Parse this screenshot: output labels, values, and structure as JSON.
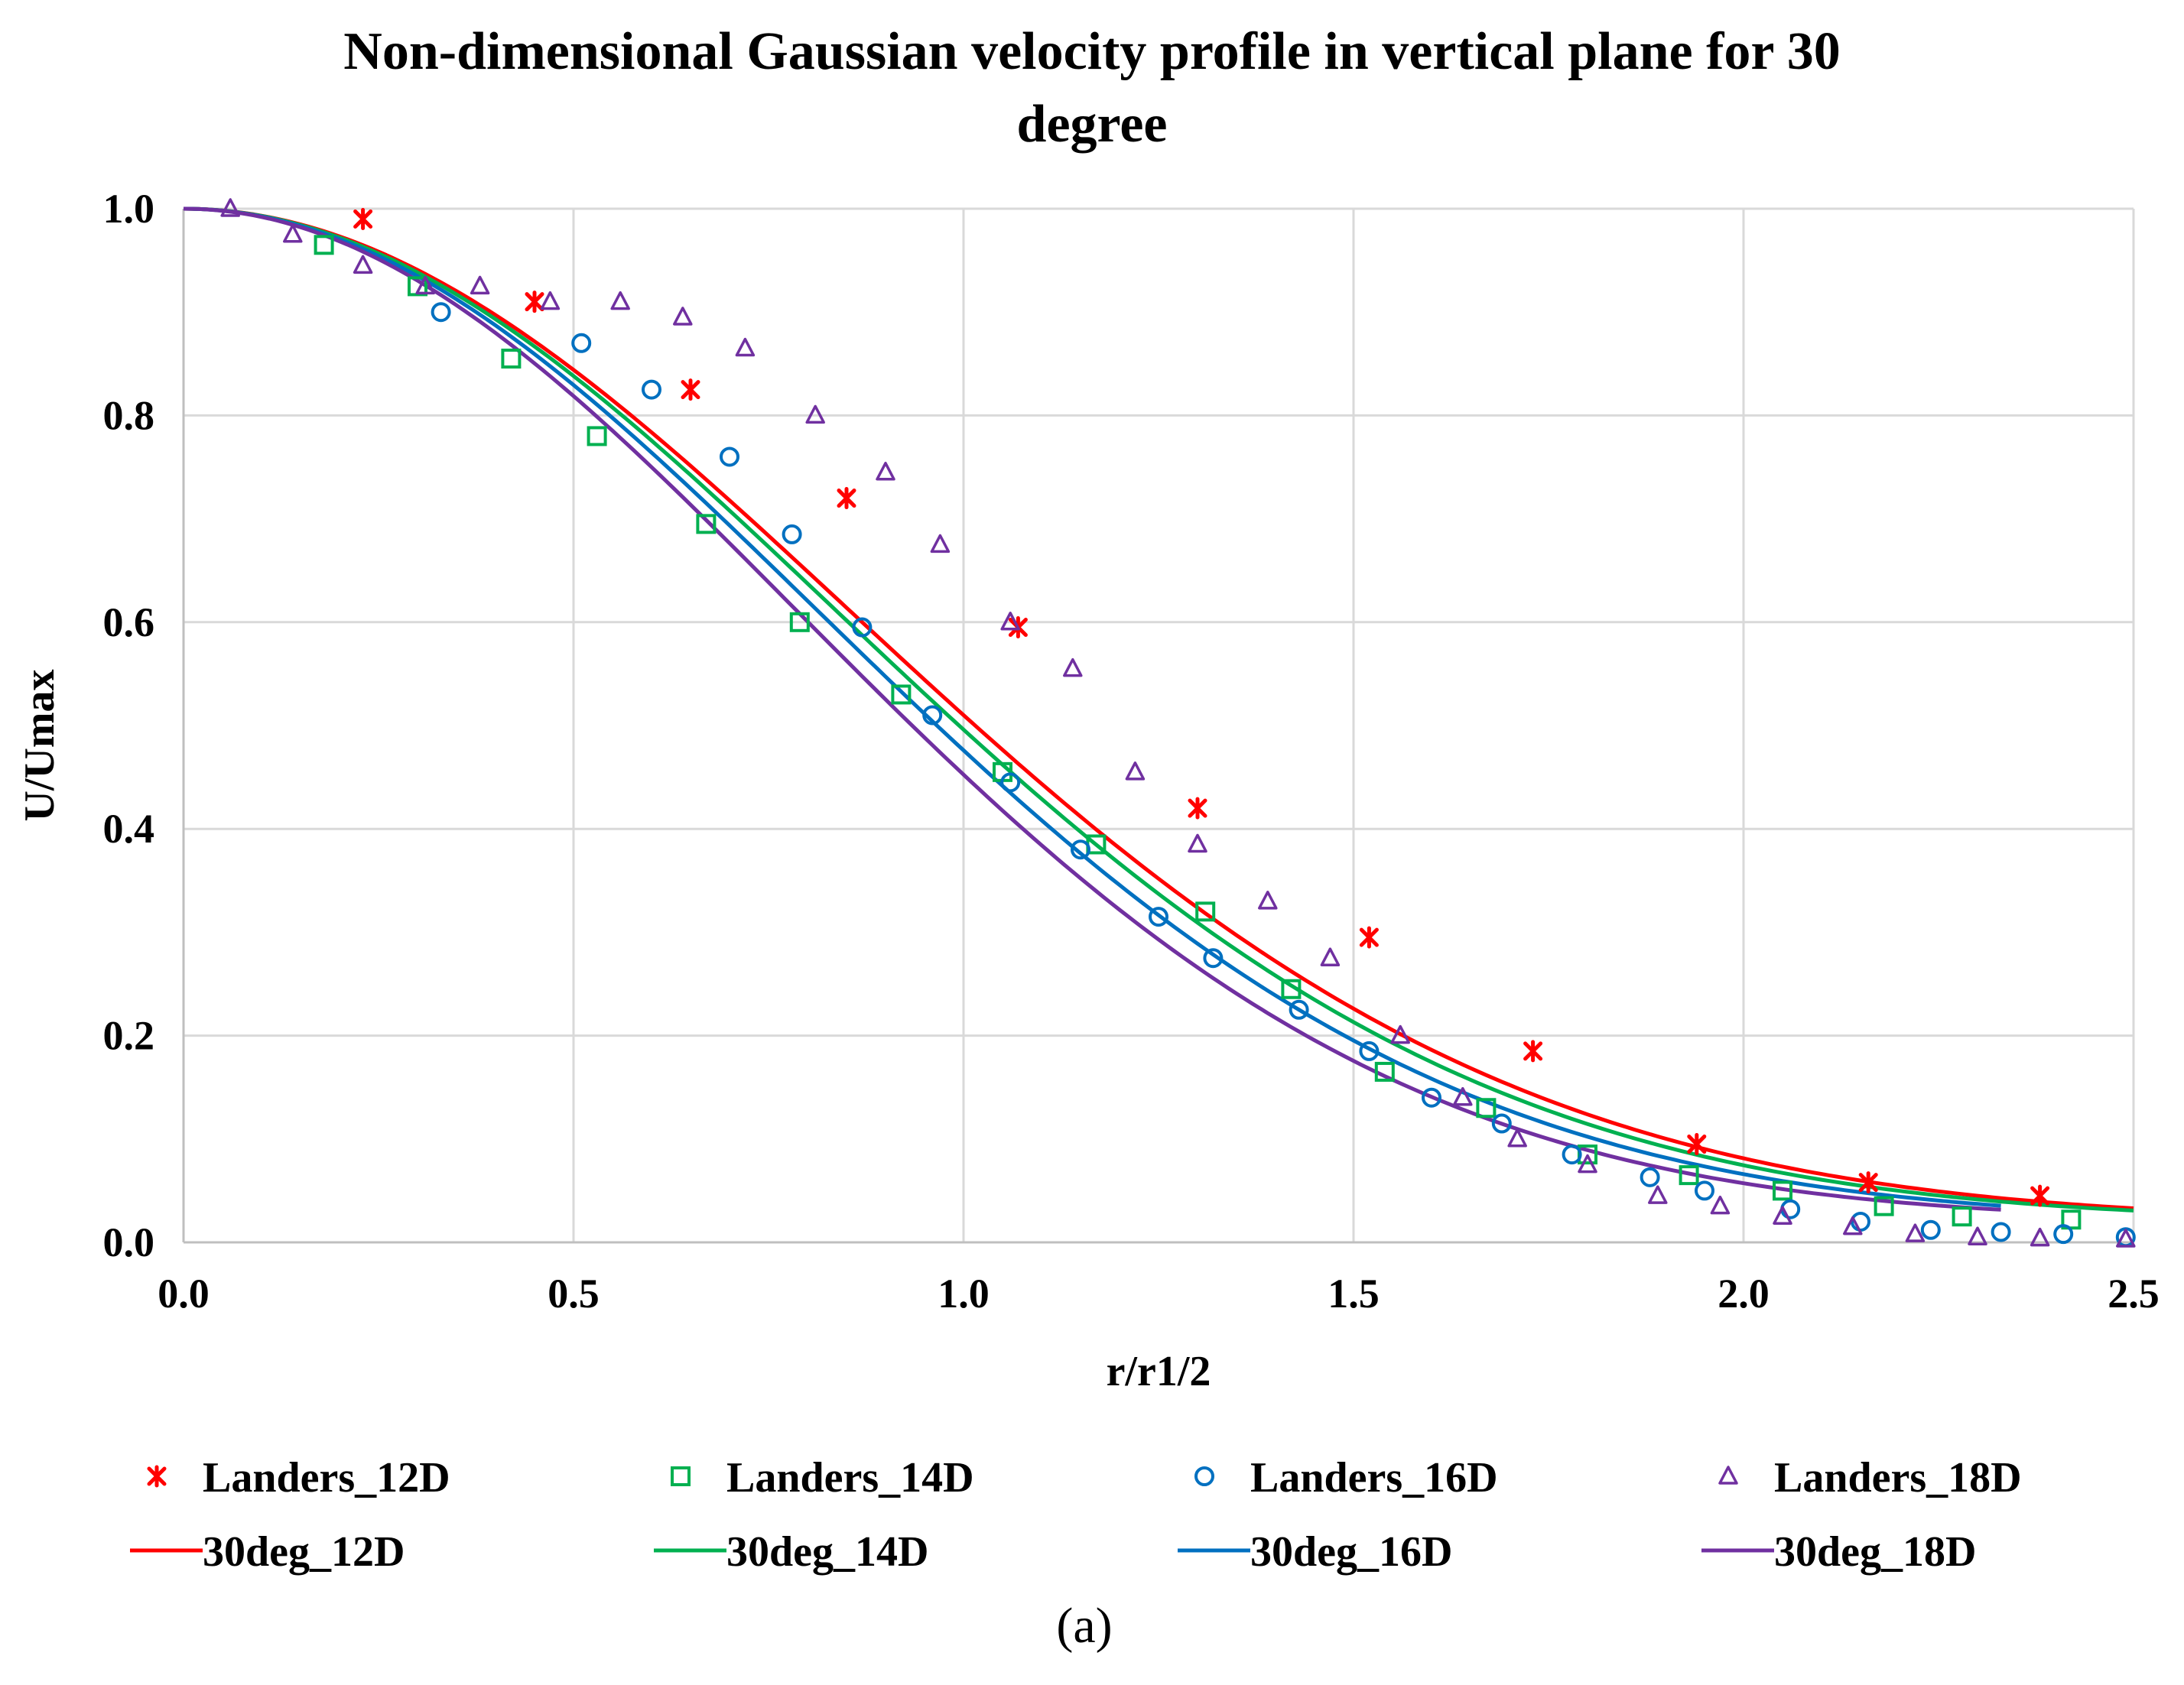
{
  "chart_data": {
    "type": "scatter",
    "title_line1": "Non-dimensional  Gaussian velocity profile in vertical plane for 30",
    "title_line2": "degree",
    "xlabel": "r/r1/2",
    "ylabel": "U/Umax",
    "xlim": [
      0,
      2.5
    ],
    "ylim": [
      0,
      1.0
    ],
    "x_ticks": [
      0,
      0.5,
      1.0,
      1.5,
      2.0,
      2.5
    ],
    "x_tick_labels": [
      "0.0",
      "0.5",
      "1.0",
      "1.5",
      "2.0",
      "2.5"
    ],
    "y_ticks": [
      0,
      0.2,
      0.4,
      0.6,
      0.8,
      1.0
    ],
    "y_tick_labels": [
      "0.0",
      "0.2",
      "0.4",
      "0.6",
      "0.8",
      "1.0"
    ],
    "grid": true,
    "legend_position": "bottom",
    "caption": "(a)",
    "scatter_series": [
      {
        "name": "Landers_12D",
        "marker": "star",
        "color": "#ff0000",
        "x": [
          0.23,
          0.45,
          0.65,
          0.85,
          1.07,
          1.3,
          1.52,
          1.73,
          1.94,
          2.16,
          2.38
        ],
        "y": [
          0.99,
          0.91,
          0.825,
          0.72,
          0.595,
          0.42,
          0.295,
          0.185,
          0.095,
          0.058,
          0.045
        ]
      },
      {
        "name": "Landers_14D",
        "marker": "square",
        "color": "#00b050",
        "x": [
          0.18,
          0.3,
          0.42,
          0.53,
          0.67,
          0.79,
          0.92,
          1.05,
          1.17,
          1.31,
          1.42,
          1.54,
          1.67,
          1.8,
          1.93,
          2.05,
          2.18,
          2.28,
          2.42
        ],
        "y": [
          0.965,
          0.925,
          0.855,
          0.78,
          0.695,
          0.6,
          0.53,
          0.455,
          0.385,
          0.32,
          0.245,
          0.165,
          0.13,
          0.085,
          0.065,
          0.05,
          0.035,
          0.025,
          0.022
        ]
      },
      {
        "name": "Landers_16D",
        "marker": "circle",
        "color": "#0070c0",
        "x": [
          0.33,
          0.51,
          0.6,
          0.7,
          0.78,
          0.87,
          0.96,
          1.06,
          1.15,
          1.25,
          1.32,
          1.43,
          1.52,
          1.6,
          1.69,
          1.78,
          1.88,
          1.95,
          2.06,
          2.15,
          2.24,
          2.33,
          2.41,
          2.49
        ],
        "y": [
          0.9,
          0.87,
          0.825,
          0.76,
          0.685,
          0.595,
          0.51,
          0.445,
          0.38,
          0.315,
          0.275,
          0.225,
          0.185,
          0.14,
          0.115,
          0.085,
          0.063,
          0.05,
          0.032,
          0.02,
          0.012,
          0.01,
          0.008,
          0.005
        ]
      },
      {
        "name": "Landers_18D",
        "marker": "triangle",
        "color": "#7030a0",
        "x": [
          0.06,
          0.14,
          0.23,
          0.31,
          0.38,
          0.47,
          0.56,
          0.64,
          0.72,
          0.81,
          0.9,
          0.97,
          1.06,
          1.14,
          1.22,
          1.3,
          1.39,
          1.47,
          1.56,
          1.64,
          1.71,
          1.8,
          1.89,
          1.97,
          2.05,
          2.14,
          2.22,
          2.3,
          2.38,
          2.49
        ],
        "y": [
          1.0,
          0.975,
          0.945,
          0.925,
          0.925,
          0.91,
          0.91,
          0.895,
          0.865,
          0.8,
          0.745,
          0.675,
          0.6,
          0.555,
          0.455,
          0.385,
          0.33,
          0.275,
          0.2,
          0.14,
          0.1,
          0.075,
          0.045,
          0.035,
          0.025,
          0.015,
          0.008,
          0.005,
          0.004,
          0.003
        ]
      }
    ],
    "line_series": [
      {
        "name": "30deg_12D",
        "color": "#ff0000",
        "c": 0.693,
        "baseline": 0.02,
        "xmax": 2.5
      },
      {
        "name": "30deg_14D",
        "color": "#00b050",
        "c": 0.722,
        "baseline": 0.02,
        "xmax": 2.5
      },
      {
        "name": "30deg_16D",
        "color": "#0070c0",
        "c": 0.765,
        "baseline": 0.02,
        "xmax": 2.33
      },
      {
        "name": "30deg_18D",
        "color": "#7030a0",
        "c": 0.818,
        "baseline": 0.02,
        "xmax": 2.33
      }
    ]
  }
}
